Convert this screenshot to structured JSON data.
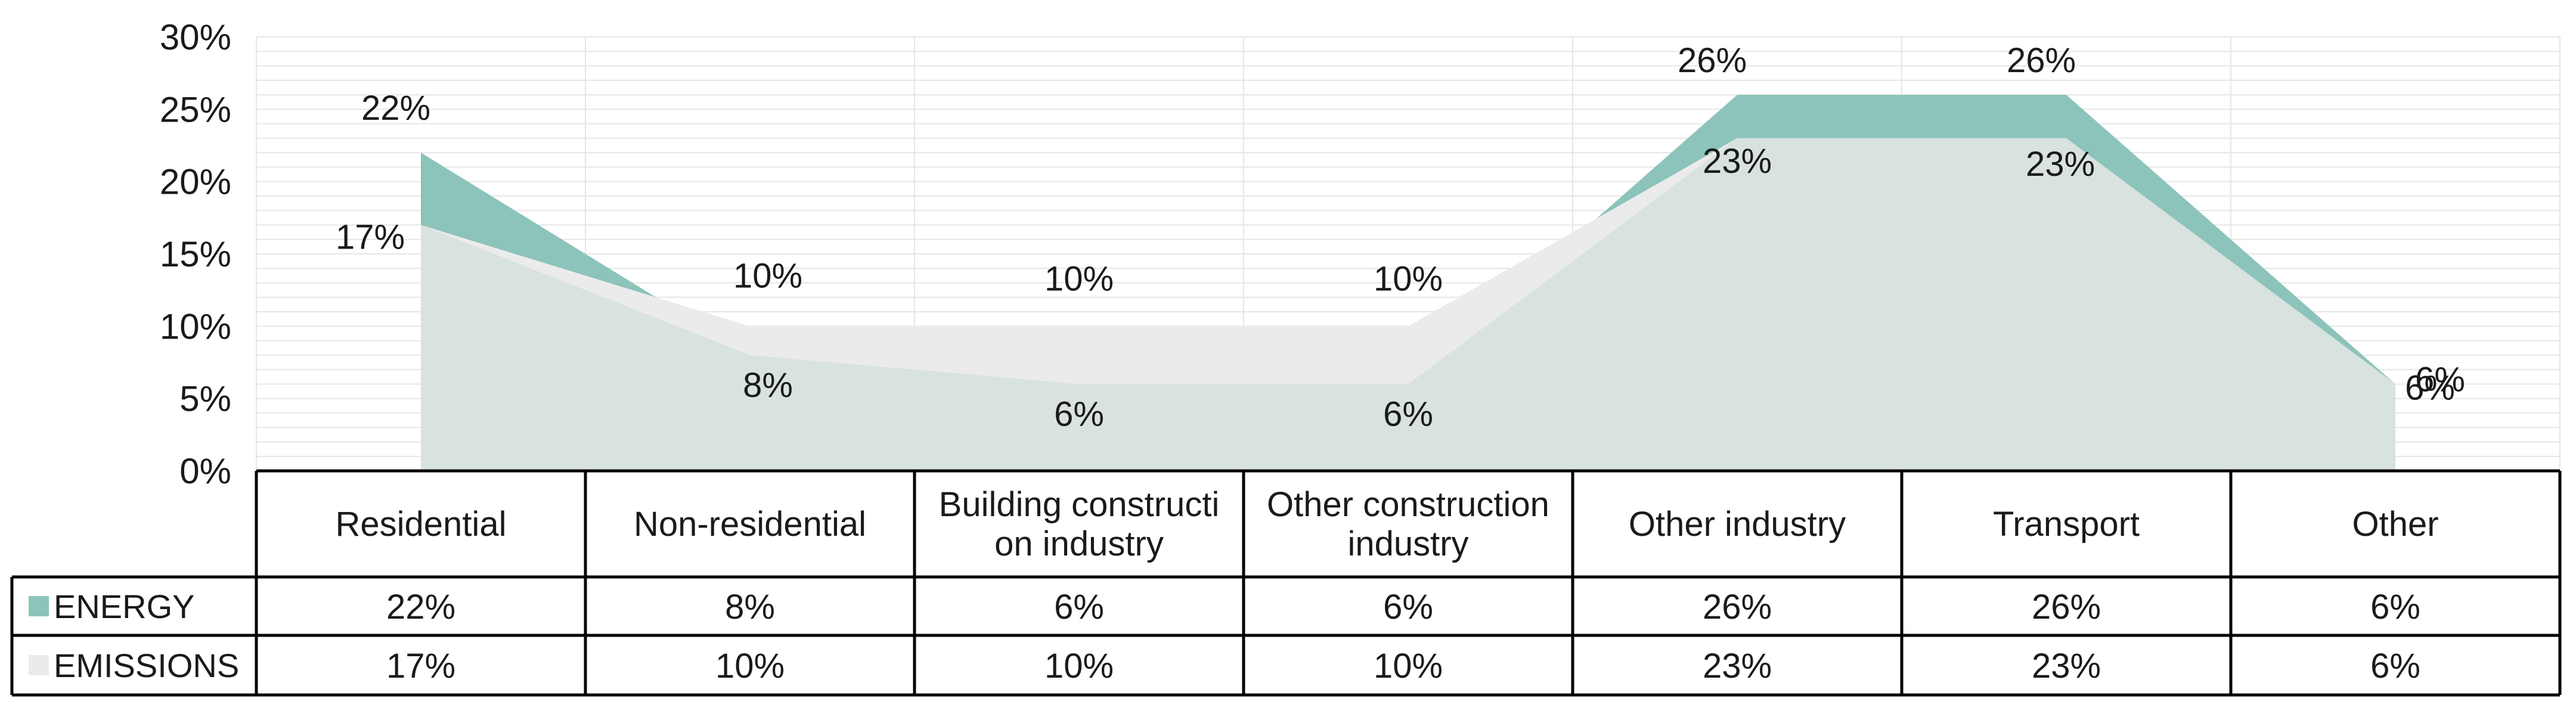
{
  "chart_data": {
    "type": "area",
    "categories": [
      [
        "Residential"
      ],
      [
        "Non-residential"
      ],
      [
        "Building constructi",
        "on industry"
      ],
      [
        "Other construction",
        "industry"
      ],
      [
        "Other industry"
      ],
      [
        "Transport"
      ],
      [
        "Other"
      ]
    ],
    "series": [
      {
        "name": "ENERGY",
        "values": [
          22,
          8,
          6,
          6,
          26,
          26,
          6
        ],
        "color": "#8cc3ba"
      },
      {
        "name": "EMISSIONS",
        "values": [
          17,
          10,
          10,
          10,
          23,
          23,
          6
        ],
        "color": "#ebebeb"
      }
    ],
    "overlap_color": "#d8e2de",
    "ylim": [
      0,
      30
    ],
    "yticks": [
      "0%",
      "5%",
      "10%",
      "15%",
      "20%",
      "25%",
      "30%"
    ],
    "value_suffix": "%",
    "grid": true,
    "data_table": true,
    "title": "",
    "xlabel": "",
    "ylabel": ""
  }
}
